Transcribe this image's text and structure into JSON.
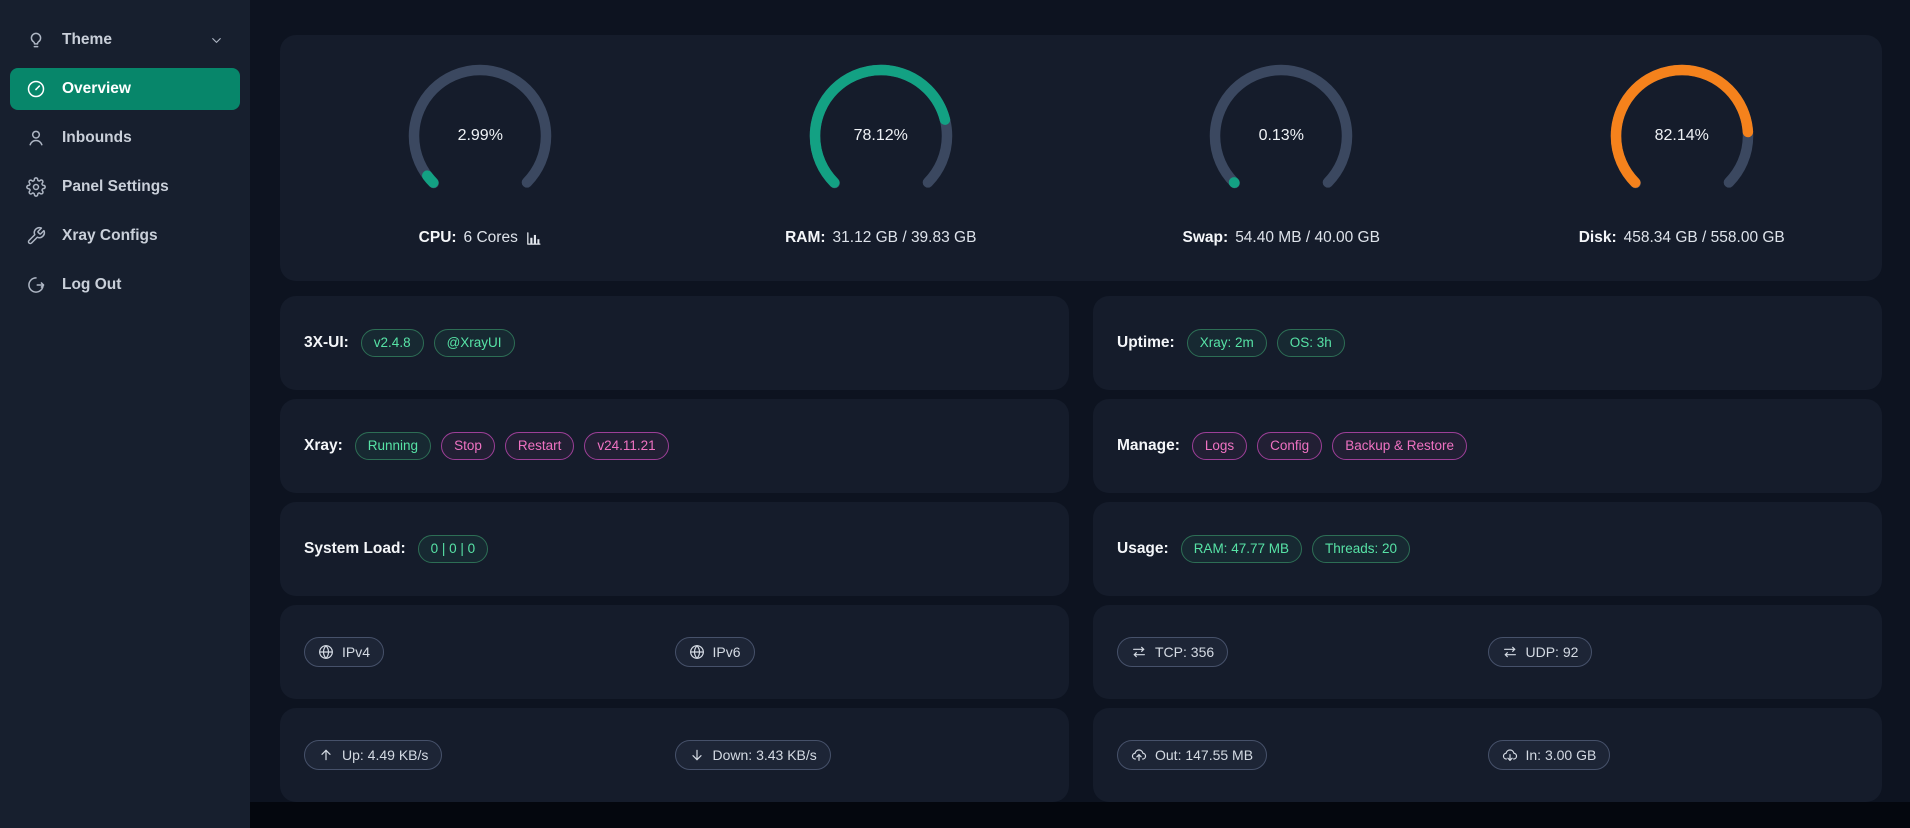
{
  "colors": {
    "bg": "#0d1320",
    "sidebar-bg": "#171f2e",
    "card": "#151c2b",
    "accent": "#07866a",
    "gauge-track": "#3b4860",
    "gauge-green": "#13a183",
    "gauge-orange": "#f5821c",
    "badge-green-text": "#57e3a6",
    "badge-pink-text": "#ef72c2"
  },
  "sidebar": {
    "items": [
      {
        "id": "theme",
        "icon": "lightbulb",
        "label": "Theme",
        "chevron": true,
        "selected": false
      },
      {
        "id": "overview",
        "icon": "gauge",
        "label": "Overview",
        "chevron": false,
        "selected": true
      },
      {
        "id": "inbounds",
        "icon": "user",
        "label": "Inbounds",
        "chevron": false,
        "selected": false
      },
      {
        "id": "panel-settings",
        "icon": "gear",
        "label": "Panel Settings",
        "chevron": false,
        "selected": false
      },
      {
        "id": "xray-configs",
        "icon": "wrench",
        "label": "Xray Configs",
        "chevron": false,
        "selected": false
      },
      {
        "id": "log-out",
        "icon": "logout",
        "label": "Log Out",
        "chevron": false,
        "selected": false
      }
    ]
  },
  "gauges": [
    {
      "id": "cpu",
      "percent": 2.99,
      "percent_label": "2.99%",
      "color_key": "gauge-green",
      "label_bold": "CPU:",
      "label_text": "6 Cores",
      "trailing_icon": "chart"
    },
    {
      "id": "ram",
      "percent": 78.12,
      "percent_label": "78.12%",
      "color_key": "gauge-green",
      "label_bold": "RAM:",
      "label_text": "31.12 GB / 39.83 GB",
      "trailing_icon": ""
    },
    {
      "id": "swap",
      "percent": 0.13,
      "percent_label": "0.13%",
      "color_key": "gauge-green",
      "label_bold": "Swap:",
      "label_text": "54.40 MB / 40.00 GB",
      "trailing_icon": ""
    },
    {
      "id": "disk",
      "percent": 82.14,
      "percent_label": "82.14%",
      "color_key": "gauge-orange",
      "label_bold": "Disk:",
      "label_text": "458.34 GB / 558.00 GB",
      "trailing_icon": ""
    }
  ],
  "info_rows": [
    {
      "left": {
        "id": "3x-ui",
        "label": "3X-UI:",
        "badges": [
          {
            "text": "v2.4.8",
            "style": "green",
            "name": "panel-version-badge",
            "clickable": true
          },
          {
            "text": "@XrayUI",
            "style": "green",
            "name": "telegram-badge",
            "clickable": true
          }
        ]
      },
      "right": {
        "id": "uptime",
        "label": "Uptime:",
        "badges": [
          {
            "text": "Xray: 2m",
            "style": "green",
            "name": "xray-uptime-badge",
            "clickable": false
          },
          {
            "text": "OS: 3h",
            "style": "green",
            "name": "os-uptime-badge",
            "clickable": false
          }
        ]
      }
    },
    {
      "left": {
        "id": "xray",
        "label": "Xray:",
        "badges": [
          {
            "text": "Running",
            "style": "green",
            "name": "xray-status-badge",
            "clickable": false
          },
          {
            "text": "Stop",
            "style": "pink",
            "name": "stop-button",
            "clickable": true
          },
          {
            "text": "Restart",
            "style": "pink",
            "name": "restart-button",
            "clickable": true
          },
          {
            "text": "v24.11.21",
            "style": "pink",
            "name": "xray-version-badge",
            "clickable": true
          }
        ]
      },
      "right": {
        "id": "manage",
        "label": "Manage:",
        "badges": [
          {
            "text": "Logs",
            "style": "pink",
            "name": "logs-button",
            "clickable": true
          },
          {
            "text": "Config",
            "style": "pink",
            "name": "config-button",
            "clickable": true
          },
          {
            "text": "Backup & Restore",
            "style": "pink",
            "name": "backup-restore-button",
            "clickable": true
          }
        ]
      }
    },
    {
      "left": {
        "id": "system-load",
        "label": "System Load:",
        "badges": [
          {
            "text": "0 | 0 | 0",
            "style": "green",
            "name": "system-load-badge",
            "clickable": false
          }
        ]
      },
      "right": {
        "id": "usage",
        "label": "Usage:",
        "badges": [
          {
            "text": "RAM: 47.77 MB",
            "style": "green",
            "name": "ram-usage-badge",
            "clickable": false
          },
          {
            "text": "Threads: 20",
            "style": "green",
            "name": "threads-badge",
            "clickable": false
          }
        ]
      }
    }
  ],
  "pill_rows": [
    {
      "left": {
        "id": "ip",
        "pills": [
          {
            "icon": "globe",
            "text": "IPv4",
            "name": "ipv4-pill",
            "clickable": true
          },
          {
            "icon": "globe",
            "text": "IPv6",
            "name": "ipv6-pill",
            "clickable": true
          }
        ]
      },
      "right": {
        "id": "connections",
        "pills": [
          {
            "icon": "arrows-lr",
            "text": "TCP: 356",
            "name": "tcp-count-pill",
            "clickable": false
          },
          {
            "icon": "arrows-lr",
            "text": "UDP: 92",
            "name": "udp-count-pill",
            "clickable": false
          }
        ]
      }
    },
    {
      "left": {
        "id": "speed",
        "pills": [
          {
            "icon": "arrow-up",
            "text": "Up: 4.49 KB/s",
            "name": "upload-speed-pill",
            "clickable": false
          },
          {
            "icon": "arrow-down",
            "text": "Down: 3.43 KB/s",
            "name": "download-speed-pill",
            "clickable": false
          }
        ]
      },
      "right": {
        "id": "traffic",
        "pills": [
          {
            "icon": "cloud-up",
            "text": "Out: 147.55 MB",
            "name": "traffic-out-pill",
            "clickable": false
          },
          {
            "icon": "cloud-down",
            "text": "In: 3.00 GB",
            "name": "traffic-in-pill",
            "clickable": false
          }
        ]
      }
    }
  ]
}
